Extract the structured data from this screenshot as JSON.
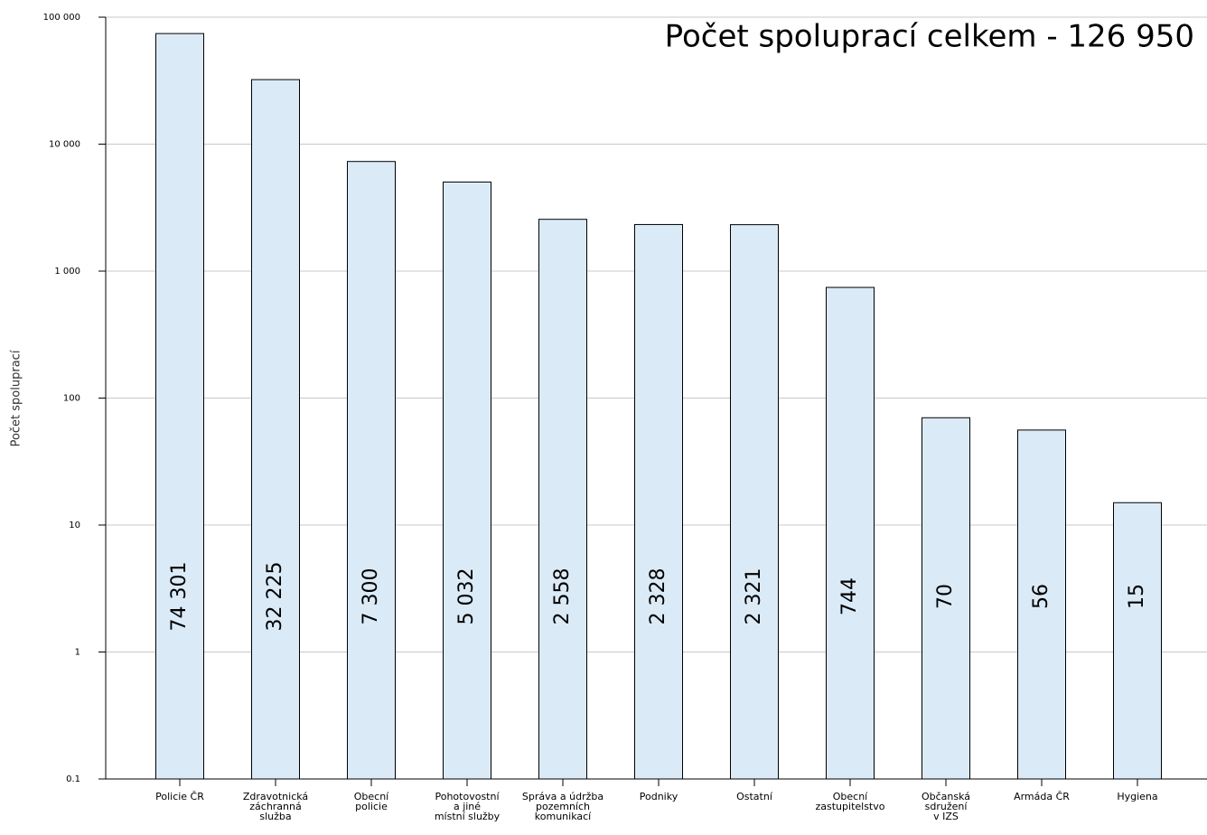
{
  "chart_data": {
    "type": "bar",
    "title": "Počet spoluprací celkem - 126 950",
    "y_label": "Počet spoluprací",
    "categories": [
      "Policie ČR",
      "Zdravotnická\nzáchranná\nslužba",
      "Obecní\npolicie",
      "Pohotovostní\na jiné\nmístní služby",
      "Správa a údržba\npozemních\nkomunikací",
      "Podniky",
      "Ostatní",
      "Obecní\nzastupitelstvo",
      "Občanská\nsdružení\nv IZS",
      "Armáda ČR",
      "Hygiena"
    ],
    "values": [
      74301,
      32225,
      7300,
      5032,
      2558,
      2328,
      2321,
      744,
      70,
      56,
      15
    ],
    "value_labels": [
      "74 301",
      "32 225",
      "7 300",
      "5 032",
      "2 558",
      "2 328",
      "2 321",
      "744",
      "70",
      "56",
      "15"
    ],
    "color": "#dbeaf7",
    "log_scale": true,
    "grid": true,
    "ylim": [
      0.1,
      100000
    ],
    "yticks": [
      0.1,
      1,
      10,
      100,
      {
        "value": 1000,
        "label": "1 000"
      },
      {
        "value": 10000,
        "label": "10 000"
      },
      {
        "value": 100000,
        "label": "100 000"
      }
    ]
  }
}
